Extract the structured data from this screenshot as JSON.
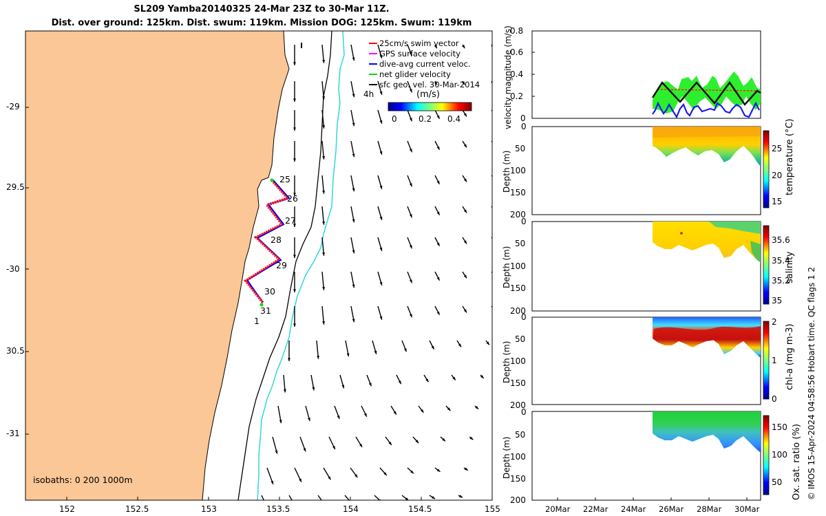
{
  "title": {
    "line1": "SL209 Yamba20140325 24-Mar 23Z to 30-Mar 11Z.",
    "line2": "Dist. over ground: 125km. Dist. swum: 119km. Mission DOG: 125km. Swum: 119km"
  },
  "map": {
    "lat_ticks": [
      "-29",
      "29.5",
      "-30",
      "30.5",
      "-31"
    ],
    "lon_ticks": [
      "152",
      "152.5",
      "153",
      "153.5",
      "154",
      "154.5",
      "155"
    ],
    "isobaths_label": "isobaths: 0   200  1000m",
    "legend": [
      {
        "label": "25cm/s swim vector",
        "color": "#ff0000"
      },
      {
        "label": "GPS surface velocity",
        "color": "#ff00ff"
      },
      {
        "label": "dive-avg current veloc.",
        "color": "#0000ff"
      },
      {
        "label": "net glider velocity",
        "color": "#00dd00"
      },
      {
        "label": "sfc geo. vel. 30-Mar-2014",
        "color": "#000000"
      }
    ],
    "time_annotation": "4h",
    "colorbar": {
      "label": "(m/s)",
      "ticks": [
        "0",
        "0.2",
        "0.4"
      ]
    },
    "day_labels": [
      "25",
      "26",
      "27",
      "28",
      "29",
      "30",
      "31",
      "1"
    ]
  },
  "panels": {
    "velocity": {
      "ylabel": "velocity magnitude (m/s)",
      "yticks": [
        "0.8",
        "0.6",
        "0.4",
        "0.2",
        "0"
      ]
    },
    "temperature": {
      "ylabel": "Depth (m)",
      "yticks": [
        "0",
        "50",
        "100",
        "150",
        "200"
      ],
      "cbar_label": "temperature (°C)",
      "cbar_ticks": [
        "25",
        "20",
        "15"
      ]
    },
    "salinity": {
      "ylabel": "Depth (m)",
      "yticks": [
        "0",
        "50",
        "100",
        "150",
        "200"
      ],
      "cbar_label": "salinity",
      "cbar_ticks": [
        "35.6",
        "35.4",
        "35.2",
        "35"
      ]
    },
    "chla": {
      "ylabel": "Depth (m)",
      "yticks": [
        "0",
        "50",
        "100",
        "150",
        "200"
      ],
      "cbar_label": "chl-a (mg m-3)",
      "cbar_ticks": [
        "2",
        "1",
        "0"
      ]
    },
    "oxygen": {
      "ylabel": "Depth (m)",
      "yticks": [
        "0",
        "50",
        "100",
        "150",
        "200"
      ],
      "cbar_label": "Ox. sat. ratio (%)",
      "cbar_ticks": [
        "150",
        "100",
        "50"
      ],
      "xticks": [
        "20Mar",
        "22Mar",
        "24Mar",
        "26Mar",
        "28Mar",
        "30Mar"
      ]
    }
  },
  "side_note": "© IMOS 15-Apr-2024 04:58:56 Hobart time. QC flags 1  2"
}
